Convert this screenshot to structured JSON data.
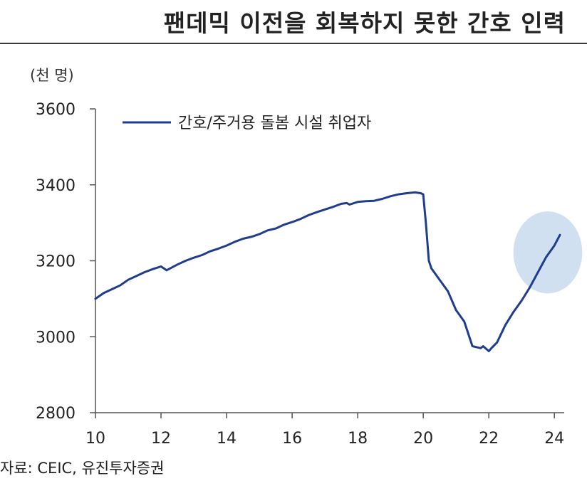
{
  "title": "팬데믹 이전을 회복하지 못한 간호 인력",
  "unit_label": "(천 명)",
  "source": "자료: CEIC, 유진투자증권",
  "colors": {
    "line": "#1f3d8c",
    "highlight": "#c9dbef",
    "axis": "#555555"
  },
  "chart_data": {
    "type": "line",
    "title": "팬데믹 이전을 회복하지 못한 간호 인력",
    "ylabel": "(천 명)",
    "xlabel": "",
    "xlim": [
      10,
      24.3
    ],
    "ylim": [
      2800,
      3600
    ],
    "x_ticks": [
      10,
      12,
      14,
      16,
      18,
      20,
      22,
      24
    ],
    "x_tick_labels": [
      "10",
      "12",
      "14",
      "16",
      "18",
      "20",
      "22",
      "24"
    ],
    "y_ticks": [
      2800,
      3000,
      3200,
      3400,
      3600
    ],
    "y_tick_labels": [
      "2800",
      "3000",
      "3200",
      "3400",
      "3600"
    ],
    "grid": false,
    "legend": "top-left",
    "highlight_ellipse": {
      "x_center": 23.8,
      "y_center": 3222,
      "x_radius": 1.05,
      "y_radius": 108
    },
    "series": [
      {
        "name": "간호/주거용 돌봄 시설 취업자",
        "x": [
          10.0,
          10.25,
          10.5,
          10.75,
          11.0,
          11.25,
          11.5,
          11.75,
          12.0,
          12.17,
          12.5,
          12.75,
          13.0,
          13.25,
          13.5,
          13.75,
          14.0,
          14.25,
          14.5,
          14.75,
          15.0,
          15.25,
          15.5,
          15.75,
          16.0,
          16.25,
          16.5,
          16.75,
          17.0,
          17.25,
          17.5,
          17.67,
          17.75,
          18.0,
          18.25,
          18.5,
          18.75,
          19.0,
          19.25,
          19.5,
          19.75,
          19.92,
          20.0,
          20.08,
          20.17,
          20.25,
          20.5,
          20.75,
          21.0,
          21.25,
          21.5,
          21.75,
          21.83,
          22.0,
          22.08,
          22.25,
          22.5,
          22.75,
          23.0,
          23.25,
          23.5,
          23.75,
          24.0,
          24.17
        ],
        "y": [
          3100,
          3115,
          3125,
          3135,
          3150,
          3160,
          3170,
          3178,
          3185,
          3175,
          3190,
          3200,
          3208,
          3215,
          3225,
          3232,
          3240,
          3250,
          3258,
          3263,
          3270,
          3280,
          3285,
          3295,
          3302,
          3310,
          3320,
          3328,
          3335,
          3342,
          3350,
          3352,
          3348,
          3355,
          3357,
          3358,
          3363,
          3370,
          3375,
          3378,
          3380,
          3378,
          3375,
          3300,
          3200,
          3180,
          3150,
          3120,
          3070,
          3040,
          2975,
          2970,
          2975,
          2962,
          2970,
          2985,
          3030,
          3065,
          3095,
          3130,
          3170,
          3210,
          3240,
          3268
        ]
      }
    ]
  }
}
